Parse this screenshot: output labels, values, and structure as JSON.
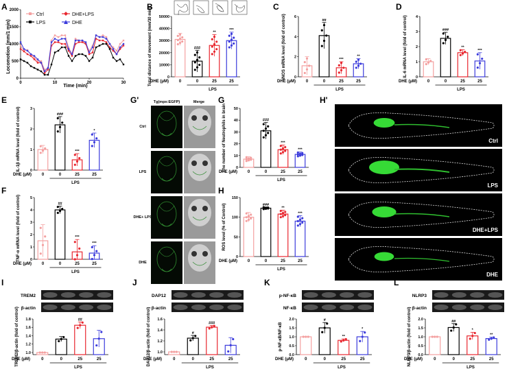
{
  "colors": {
    "ctrl": "#f4a0a0",
    "lps": "#000000",
    "dhe_lps": "#e8262e",
    "dhe": "#3b3bdc"
  },
  "common": {
    "dhe_um": "DHE (μM)",
    "lps": "LPS",
    "zero": "0",
    "twentyfive": "25"
  },
  "panels": {
    "A": {
      "letter": "A",
      "ylabel": "Locomotion (mm/1 min)",
      "xlabel": "Time (min)",
      "yticks": [
        "0",
        "500",
        "1000",
        "1500",
        "2000"
      ],
      "xticks": [
        "0",
        "10",
        "20",
        "30"
      ],
      "legend": [
        "Ctrl",
        "DHE+LPS",
        "LPS",
        "DHE"
      ]
    },
    "B": {
      "letter": "B",
      "ylabel": "Total distance of movement (mm/30 min)",
      "yticks": [
        "0",
        "10000",
        "20000",
        "30000",
        "40000",
        "50000"
      ],
      "sig": [
        "###",
        "**",
        "***"
      ]
    },
    "C": {
      "letter": "C",
      "ylabel": "iNOS mRNA level (fold of control)",
      "yticks": [
        "0",
        "2",
        "4",
        "6"
      ],
      "sig": [
        "##",
        "***",
        "**"
      ]
    },
    "D": {
      "letter": "D",
      "ylabel": "IL-6 mRNA level (fold of control)",
      "yticks": [
        "0",
        "1",
        "2",
        "3",
        "4"
      ],
      "sig": [
        "###",
        "**",
        "***"
      ]
    },
    "E": {
      "letter": "E",
      "ylabel": "IL-1β mRNA level (fold of control)",
      "yticks": [
        "0",
        "1",
        "2",
        "3"
      ],
      "sig": [
        "###",
        "***",
        "*"
      ]
    },
    "F": {
      "letter": "F",
      "ylabel": "TNF-α mRNA level (fold of control)",
      "yticks": [
        "0",
        "1",
        "2",
        "3",
        "4",
        "5"
      ],
      "sig": [
        "##",
        "***",
        "***"
      ]
    },
    "G": {
      "letter": "G",
      "ylabel": "The number of Neutrophils in brain",
      "yticks": [
        "0",
        "10",
        "20",
        "30",
        "40",
        "50"
      ],
      "sig": [
        "###",
        "***",
        "***"
      ]
    },
    "H": {
      "letter": "H",
      "ylabel": "ROS level (% of Control)",
      "yticks": [
        "0",
        "50",
        "100",
        "150"
      ],
      "sig": [
        "###",
        "**",
        "***"
      ]
    },
    "Gp": {
      "letter": "G'",
      "col1": "Tg(mpx:EGFP)",
      "col2": "Merge",
      "rows": [
        "Ctrl",
        "LPS",
        "DHE+ LPS",
        "DHE"
      ]
    },
    "Hp": {
      "letter": "H'",
      "rows": [
        "Ctrl",
        "LPS",
        "DHE+LPS",
        "DHE"
      ]
    },
    "I": {
      "letter": "I",
      "band1": "TREM2",
      "band2": "β-actin",
      "ylabel": "TREM2/β-actin (fold of control)",
      "yticks": [
        "1.0",
        "1.2",
        "1.4",
        "1.6",
        "1.8"
      ],
      "sig": [
        "",
        "##",
        ""
      ]
    },
    "J": {
      "letter": "J",
      "band1": "DAP12",
      "band2": "β-actin",
      "ylabel": "DAP12/β-actin (fold of control)",
      "yticks": [
        "1.0",
        "1.2",
        "1.4",
        "1.6"
      ],
      "sig": [
        "#",
        "###",
        ""
      ]
    },
    "K": {
      "letter": "K",
      "band1": "p-NF-κB",
      "band2": "NF-κB",
      "ylabel": "p-NF-κB/NF-κB",
      "yticks": [
        "0.0",
        "0.5",
        "1.0",
        "1.5",
        "2.0"
      ],
      "sig": [
        "#",
        "**",
        "*"
      ]
    },
    "L": {
      "letter": "L",
      "band1": "NLRP3",
      "band2": "β-actin",
      "ylabel": "NLRP3/β-actin (fold of control)",
      "yticks": [
        "0.0",
        "0.5",
        "1.0",
        "1.5",
        "2.0"
      ],
      "sig": [
        "##",
        "*",
        "**"
      ]
    }
  },
  "chart_data": [
    {
      "panel": "A",
      "type": "line",
      "x": [
        0,
        1,
        2,
        3,
        4,
        5,
        6,
        7,
        8,
        9,
        10,
        11,
        12,
        13,
        14,
        15,
        16,
        17,
        18,
        19,
        20,
        21,
        22,
        23,
        24,
        25,
        26,
        27,
        28,
        29,
        30
      ],
      "series": [
        {
          "name": "Ctrl",
          "values": [
            950,
            800,
            820,
            700,
            600,
            500,
            500,
            250,
            300,
            1100,
            1250,
            1200,
            1250,
            1250,
            900,
            700,
            1150,
            1100,
            1100,
            1000,
            800,
            950,
            1250,
            1200,
            1250,
            1200,
            1000,
            900,
            800,
            1000,
            1100
          ]
        },
        {
          "name": "DHE+LPS",
          "values": [
            850,
            780,
            700,
            650,
            550,
            450,
            450,
            150,
            250,
            950,
            1050,
            1050,
            1000,
            1000,
            800,
            650,
            1000,
            1050,
            1050,
            1000,
            700,
            750,
            1150,
            1100,
            1100,
            1050,
            900,
            800,
            700,
            850,
            950
          ]
        },
        {
          "name": "LPS",
          "values": [
            550,
            500,
            450,
            350,
            300,
            250,
            200,
            100,
            100,
            400,
            750,
            800,
            900,
            900,
            650,
            500,
            650,
            700,
            700,
            650,
            500,
            600,
            900,
            950,
            1000,
            1000,
            850,
            600,
            500,
            550,
            400
          ]
        },
        {
          "name": "DHE",
          "values": [
            1050,
            850,
            800,
            700,
            650,
            550,
            450,
            200,
            300,
            1050,
            1150,
            1100,
            1150,
            1150,
            850,
            700,
            1100,
            1100,
            1100,
            1050,
            750,
            900,
            1250,
            1200,
            1200,
            1150,
            1000,
            850,
            700,
            900,
            1000
          ]
        }
      ],
      "ylim": [
        0,
        2000
      ],
      "xlim": [
        0,
        30
      ]
    },
    {
      "panel": "B",
      "type": "bar",
      "values": [
        31000,
        13000,
        26000,
        30000
      ],
      "errors": [
        5000,
        9000,
        9000,
        7000
      ],
      "ylim": [
        0,
        50000
      ]
    },
    {
      "panel": "C",
      "type": "bar",
      "values": [
        1.1,
        4.1,
        0.9,
        1.3
      ],
      "errors": [
        0.9,
        1.3,
        0.6,
        0.5
      ],
      "ylim": [
        0,
        6
      ]
    },
    {
      "panel": "D",
      "type": "bar",
      "values": [
        1.0,
        2.55,
        1.6,
        1.05
      ],
      "errors": [
        0.2,
        0.4,
        0.2,
        0.55
      ],
      "ylim": [
        0,
        4
      ]
    },
    {
      "panel": "E",
      "type": "bar",
      "values": [
        1.0,
        2.2,
        0.5,
        1.45
      ],
      "errors": [
        0.2,
        0.4,
        0.3,
        0.35
      ],
      "ylim": [
        0,
        3
      ]
    },
    {
      "panel": "F",
      "type": "bar",
      "values": [
        1.5,
        4.0,
        0.6,
        0.5
      ],
      "errors": [
        1.3,
        0.3,
        1.0,
        0.6
      ],
      "ylim": [
        0,
        5
      ]
    },
    {
      "panel": "G",
      "type": "bar",
      "values": [
        7,
        31,
        15,
        11
      ],
      "errors": [
        2,
        7,
        4,
        2
      ],
      "ylim": [
        0,
        50
      ]
    },
    {
      "panel": "H",
      "type": "bar",
      "values": [
        100,
        123,
        108,
        90
      ],
      "errors": [
        12,
        3,
        10,
        14
      ],
      "ylim": [
        0,
        150
      ]
    },
    {
      "panel": "I",
      "type": "bar",
      "values": [
        1.0,
        1.32,
        1.65,
        1.33
      ],
      "errors": [
        0,
        0.06,
        0.08,
        0.2
      ],
      "ylim": [
        0.95,
        1.8
      ]
    },
    {
      "panel": "J",
      "type": "bar",
      "values": [
        1.0,
        1.25,
        1.45,
        1.12
      ],
      "errors": [
        0,
        0.05,
        0.03,
        0.14
      ],
      "ylim": [
        0.95,
        1.6
      ]
    },
    {
      "panel": "K",
      "type": "bar",
      "values": [
        1.0,
        1.5,
        0.8,
        1.0
      ],
      "errors": [
        0,
        0.3,
        0.08,
        0.3
      ],
      "ylim": [
        0,
        2.0
      ]
    },
    {
      "panel": "L",
      "type": "bar",
      "values": [
        1.0,
        1.52,
        1.05,
        0.9
      ],
      "errors": [
        0,
        0.22,
        0.2,
        0.08
      ],
      "ylim": [
        0,
        2.0
      ]
    }
  ]
}
